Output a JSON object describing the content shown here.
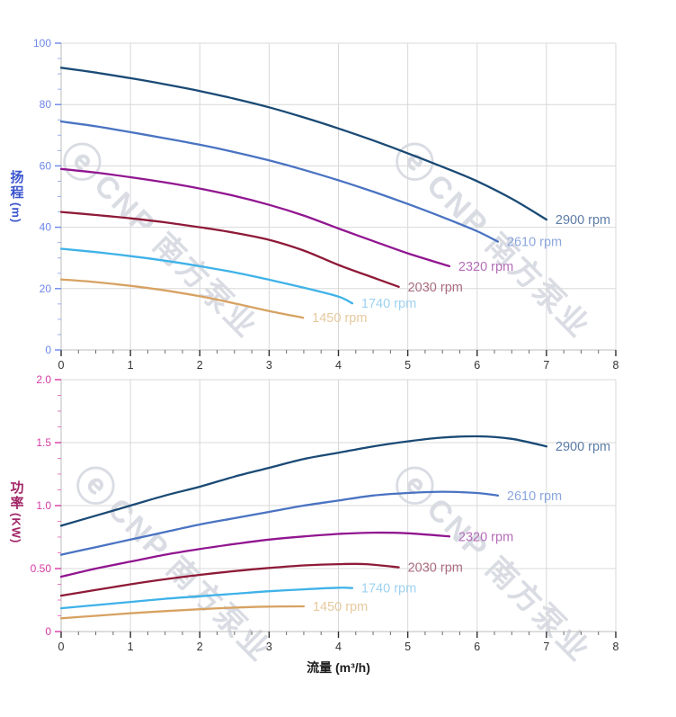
{
  "watermark": {
    "glyph": "ⓔ",
    "text": "CNP 南方泵业"
  },
  "colors": {
    "grid": "#d8d8d8",
    "axis_line": "#bcbcbc",
    "x_tick": "#2e2e2e",
    "x_tick_label": "#333333"
  },
  "chart_data": [
    {
      "id": "head",
      "type": "line",
      "title": "",
      "xlabel": "流量 (m³/h)",
      "ylabel": "扬程 (m)",
      "ylabel_cn": "扬程",
      "ylabel_unit": "(m)",
      "y_title_color": "#3b55cd",
      "y_tick_color": "#6d87e8",
      "xlim": [
        0,
        8
      ],
      "ylim": [
        0,
        100
      ],
      "grid": true,
      "x_major_ticks": [
        0,
        1,
        2,
        3,
        4,
        5,
        6,
        7,
        8
      ],
      "x_tick_labels": [
        "0",
        "1",
        "2",
        "3",
        "4",
        "5",
        "6",
        "7",
        "8"
      ],
      "x_minor_step": 0.25,
      "y_major_ticks": [
        0,
        20,
        40,
        60,
        80,
        100
      ],
      "y_tick_labels": [
        "0",
        "20",
        "40",
        "60",
        "80",
        "100"
      ],
      "y_minor_step": 5,
      "legend_position": "end-of-curve",
      "series": [
        {
          "name": "2900 rpm",
          "color": "#1a4a75",
          "label_color": "#5d7da8",
          "points": [
            [
              0,
              92
            ],
            [
              0.5,
              90.4
            ],
            [
              1,
              88.6
            ],
            [
              1.5,
              86.6
            ],
            [
              2,
              84.4
            ],
            [
              2.5,
              81.9
            ],
            [
              3,
              79.1
            ],
            [
              3.5,
              75.8
            ],
            [
              4,
              72.2
            ],
            [
              4.5,
              68.3
            ],
            [
              5,
              64.1
            ],
            [
              5.5,
              59.7
            ],
            [
              6,
              55
            ],
            [
              6.5,
              49.3
            ],
            [
              7,
              42.5
            ]
          ]
        },
        {
          "name": "2610 rpm",
          "color": "#4a73c2",
          "label_color": "#8ca7de",
          "points": [
            [
              0,
              74.5
            ],
            [
              0.5,
              72.9
            ],
            [
              1,
              71
            ],
            [
              1.5,
              69
            ],
            [
              2,
              66.9
            ],
            [
              2.5,
              64.5
            ],
            [
              3,
              61.8
            ],
            [
              3.5,
              58.7
            ],
            [
              4,
              55.3
            ],
            [
              4.5,
              51.6
            ],
            [
              5,
              47.6
            ],
            [
              5.5,
              43.3
            ],
            [
              6,
              38.7
            ],
            [
              6.3,
              35.3
            ]
          ]
        },
        {
          "name": "2320 rpm",
          "color": "#911690",
          "label_color": "#b56db8",
          "points": [
            [
              0,
              59
            ],
            [
              0.5,
              57.8
            ],
            [
              1,
              56.3
            ],
            [
              1.5,
              54.6
            ],
            [
              2,
              52.6
            ],
            [
              2.5,
              50.2
            ],
            [
              3,
              47.3
            ],
            [
              3.5,
              43.8
            ],
            [
              4,
              39.6
            ],
            [
              4.5,
              35.5
            ],
            [
              5,
              31.5
            ],
            [
              5.6,
              27.3
            ]
          ]
        },
        {
          "name": "2030 rpm",
          "color": "#8e1a38",
          "label_color": "#aa6c7e",
          "points": [
            [
              0,
              45
            ],
            [
              0.5,
              44
            ],
            [
              1,
              42.9
            ],
            [
              1.5,
              41.6
            ],
            [
              2,
              40
            ],
            [
              2.5,
              38.2
            ],
            [
              3,
              35.9
            ],
            [
              3.5,
              32.4
            ],
            [
              4,
              27.7
            ],
            [
              4.5,
              23.6
            ],
            [
              4.87,
              20.6
            ]
          ]
        },
        {
          "name": "1740 rpm",
          "color": "#3fb2e8",
          "label_color": "#9ed2f0",
          "points": [
            [
              0,
              33
            ],
            [
              0.5,
              31.9
            ],
            [
              1,
              30.6
            ],
            [
              1.5,
              29.1
            ],
            [
              2,
              27.3
            ],
            [
              2.5,
              25.3
            ],
            [
              3,
              22.9
            ],
            [
              3.5,
              20.3
            ],
            [
              4,
              17.4
            ],
            [
              4.2,
              15.2
            ]
          ]
        },
        {
          "name": "1450 rpm",
          "color": "#d7a262",
          "label_color": "#e6c99f",
          "points": [
            [
              0,
              23
            ],
            [
              0.5,
              22.1
            ],
            [
              1,
              20.9
            ],
            [
              1.5,
              19.4
            ],
            [
              2,
              17.5
            ],
            [
              2.5,
              15.2
            ],
            [
              3,
              12.7
            ],
            [
              3.49,
              10.5
            ]
          ]
        }
      ]
    },
    {
      "id": "power",
      "type": "line",
      "title": "",
      "xlabel": "流量 (m³/h)",
      "ylabel": "功率 (KW)",
      "ylabel_cn": "功率",
      "ylabel_unit": "(KW)",
      "y_title_color": "#a12767",
      "y_tick_color": "#d63aa4",
      "xlim": [
        0,
        8
      ],
      "ylim": [
        0,
        2.0
      ],
      "grid": true,
      "x_major_ticks": [
        0,
        1,
        2,
        3,
        4,
        5,
        6,
        7,
        8
      ],
      "x_tick_labels": [
        "0",
        "1",
        "2",
        "3",
        "4",
        "5",
        "6",
        "7",
        "8"
      ],
      "x_minor_step": 0.25,
      "y_major_ticks": [
        0,
        0.5,
        1.0,
        1.5,
        2.0
      ],
      "y_tick_labels": [
        "0",
        "0.50",
        "1.0",
        "1.5",
        "2.0"
      ],
      "y_minor_step": 0.125,
      "legend_position": "end-of-curve",
      "series": [
        {
          "name": "2900 rpm",
          "color": "#1a4a75",
          "label_color": "#5d7da8",
          "points": [
            [
              0,
              0.84
            ],
            [
              0.5,
              0.92
            ],
            [
              1,
              1.0
            ],
            [
              1.5,
              1.08
            ],
            [
              2,
              1.15
            ],
            [
              2.5,
              1.23
            ],
            [
              3,
              1.3
            ],
            [
              3.5,
              1.37
            ],
            [
              4,
              1.42
            ],
            [
              4.5,
              1.47
            ],
            [
              5,
              1.51
            ],
            [
              5.5,
              1.54
            ],
            [
              6,
              1.55
            ],
            [
              6.5,
              1.53
            ],
            [
              7,
              1.47
            ]
          ]
        },
        {
          "name": "2610 rpm",
          "color": "#4a73c2",
          "label_color": "#8ca7de",
          "points": [
            [
              0,
              0.61
            ],
            [
              0.5,
              0.67
            ],
            [
              1,
              0.73
            ],
            [
              1.5,
              0.79
            ],
            [
              2,
              0.85
            ],
            [
              2.5,
              0.9
            ],
            [
              3,
              0.95
            ],
            [
              3.5,
              1.0
            ],
            [
              4,
              1.04
            ],
            [
              4.5,
              1.08
            ],
            [
              5,
              1.1
            ],
            [
              5.5,
              1.11
            ],
            [
              6,
              1.1
            ],
            [
              6.3,
              1.08
            ]
          ]
        },
        {
          "name": "2320 rpm",
          "color": "#911690",
          "label_color": "#b56db8",
          "points": [
            [
              0,
              0.435
            ],
            [
              0.5,
              0.5
            ],
            [
              1,
              0.555
            ],
            [
              1.5,
              0.61
            ],
            [
              2,
              0.655
            ],
            [
              2.5,
              0.695
            ],
            [
              3,
              0.73
            ],
            [
              3.5,
              0.755
            ],
            [
              4,
              0.775
            ],
            [
              4.5,
              0.785
            ],
            [
              5,
              0.78
            ],
            [
              5.6,
              0.755
            ]
          ]
        },
        {
          "name": "2030 rpm",
          "color": "#8e1a38",
          "label_color": "#aa6c7e",
          "points": [
            [
              0,
              0.285
            ],
            [
              0.5,
              0.33
            ],
            [
              1,
              0.375
            ],
            [
              1.5,
              0.415
            ],
            [
              2,
              0.45
            ],
            [
              2.5,
              0.48
            ],
            [
              3,
              0.505
            ],
            [
              3.5,
              0.525
            ],
            [
              4,
              0.535
            ],
            [
              4.4,
              0.535
            ],
            [
              4.87,
              0.51
            ]
          ]
        },
        {
          "name": "1740 rpm",
          "color": "#3fb2e8",
          "label_color": "#9ed2f0",
          "points": [
            [
              0,
              0.185
            ],
            [
              0.5,
              0.21
            ],
            [
              1,
              0.235
            ],
            [
              1.5,
              0.26
            ],
            [
              2,
              0.28
            ],
            [
              2.5,
              0.3
            ],
            [
              3,
              0.32
            ],
            [
              3.5,
              0.335
            ],
            [
              4,
              0.348
            ],
            [
              4.2,
              0.345
            ]
          ]
        },
        {
          "name": "1450 rpm",
          "color": "#d7a262",
          "label_color": "#e6c99f",
          "points": [
            [
              0,
              0.105
            ],
            [
              0.5,
              0.125
            ],
            [
              1,
              0.145
            ],
            [
              1.5,
              0.162
            ],
            [
              2,
              0.177
            ],
            [
              2.5,
              0.19
            ],
            [
              3,
              0.198
            ],
            [
              3.5,
              0.2
            ]
          ]
        }
      ]
    }
  ]
}
